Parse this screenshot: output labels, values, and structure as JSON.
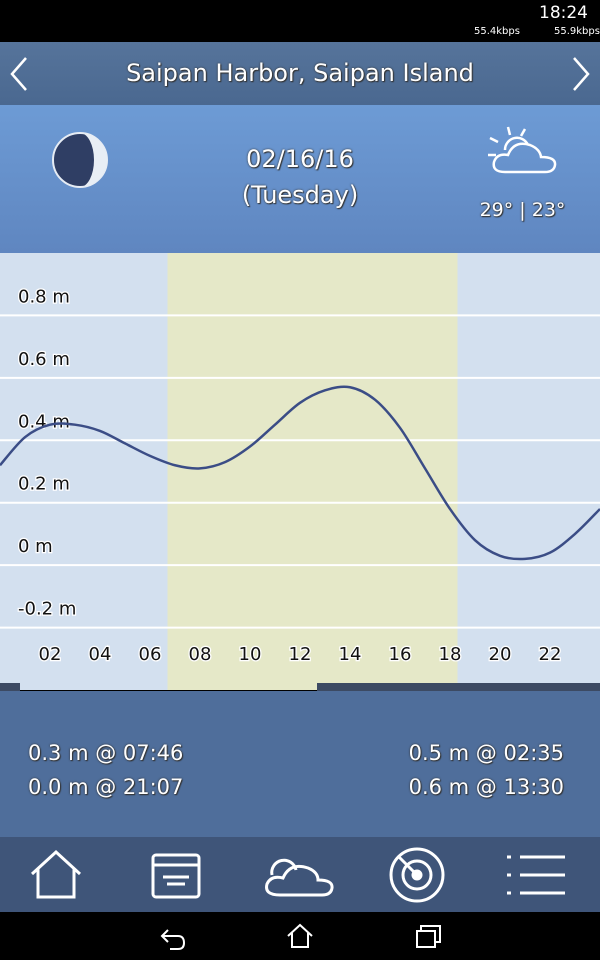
{
  "status_bar": {
    "time": "18:24",
    "up_speed": "55.4kbps",
    "down_speed": "55.9kbps"
  },
  "header": {
    "title": "Saipan Harbor, Saipan Island"
  },
  "day": {
    "date": "02/16/16",
    "weekday": "(Tuesday)",
    "temperature": "29° | 23°"
  },
  "chart_data": {
    "type": "line",
    "x": [
      0,
      1,
      2,
      3,
      4,
      5,
      6,
      7,
      8,
      9,
      10,
      11,
      12,
      13,
      14,
      15,
      16,
      17,
      18,
      19,
      20,
      21,
      22,
      23,
      24
    ],
    "values": [
      0.32,
      0.41,
      0.45,
      0.45,
      0.43,
      0.39,
      0.35,
      0.32,
      0.31,
      0.33,
      0.38,
      0.45,
      0.52,
      0.56,
      0.57,
      0.53,
      0.44,
      0.31,
      0.18,
      0.08,
      0.03,
      0.02,
      0.04,
      0.1,
      0.18
    ],
    "color": "#3b4d86",
    "daylight": [
      6.7,
      18.3
    ],
    "xlim": [
      0,
      24
    ],
    "xticks": [
      {
        "value": 2,
        "label": "02"
      },
      {
        "value": 4,
        "label": "04"
      },
      {
        "value": 6,
        "label": "06"
      },
      {
        "value": 8,
        "label": "08"
      },
      10,
      12,
      14,
      16,
      18,
      20,
      22
    ],
    "ylim": [
      -0.4,
      1.0
    ],
    "yticks": [
      {
        "value": -0.2,
        "label": "-0.2 m"
      },
      {
        "value": 0,
        "label": "0 m"
      },
      {
        "value": 0.2,
        "label": "0.2 m"
      },
      {
        "value": 0.4,
        "label": "0.4 m"
      },
      {
        "value": 0.6,
        "label": "0.6 m"
      },
      {
        "value": 0.8,
        "label": "0.8 m"
      }
    ],
    "grid": true
  },
  "tides": {
    "left": [
      "0.3 m @ 07:46",
      "0.0 m @ 21:07"
    ],
    "right": [
      "0.5 m @ 02:35",
      "0.6 m @ 13:30"
    ]
  }
}
